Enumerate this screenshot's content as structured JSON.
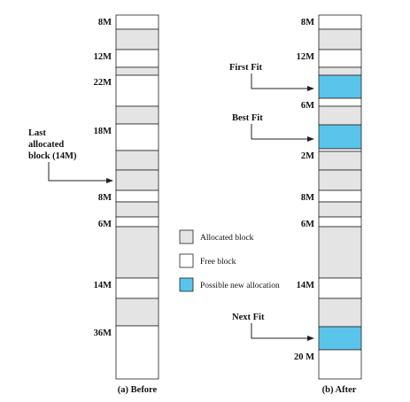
{
  "colors": {
    "allocated": "#e4e4e4",
    "free": "#ffffff",
    "new_allocation": "#5bc4ea",
    "border": "#222222"
  },
  "legend": [
    {
      "kind": "allocated",
      "label": "Allocated block"
    },
    {
      "kind": "free",
      "label": "Free block"
    },
    {
      "kind": "new",
      "label": "Possible new allocation"
    }
  ],
  "before": {
    "caption": "(a) Before",
    "blocks": [
      {
        "kind": "free",
        "label": "8M"
      },
      {
        "kind": "allocated",
        "label": ""
      },
      {
        "kind": "free",
        "label": "12M"
      },
      {
        "kind": "allocated",
        "label": ""
      },
      {
        "kind": "free",
        "label": "22M"
      },
      {
        "kind": "allocated",
        "label": ""
      },
      {
        "kind": "free",
        "label": "18M"
      },
      {
        "kind": "allocated",
        "label": ""
      },
      {
        "kind": "allocated",
        "label": ""
      },
      {
        "kind": "free",
        "label": "8M"
      },
      {
        "kind": "allocated",
        "label": ""
      },
      {
        "kind": "free",
        "label": "6M"
      },
      {
        "kind": "allocated",
        "label": ""
      },
      {
        "kind": "free",
        "label": "14M"
      },
      {
        "kind": "allocated",
        "label": ""
      },
      {
        "kind": "free",
        "label": "36M"
      }
    ],
    "annotation": {
      "lines": [
        "Last",
        "allocated",
        "block (14M)"
      ]
    }
  },
  "after": {
    "caption": "(b) After",
    "blocks": [
      {
        "kind": "free",
        "label": "8M"
      },
      {
        "kind": "allocated",
        "label": ""
      },
      {
        "kind": "free",
        "label": "12M"
      },
      {
        "kind": "allocated",
        "label": ""
      },
      {
        "kind": "new",
        "label": ""
      },
      {
        "kind": "free",
        "label": "6M"
      },
      {
        "kind": "allocated",
        "label": ""
      },
      {
        "kind": "new",
        "label": ""
      },
      {
        "kind": "free",
        "label": "2M"
      },
      {
        "kind": "allocated",
        "label": ""
      },
      {
        "kind": "allocated",
        "label": ""
      },
      {
        "kind": "free",
        "label": "8M"
      },
      {
        "kind": "allocated",
        "label": ""
      },
      {
        "kind": "free",
        "label": "6M"
      },
      {
        "kind": "allocated",
        "label": ""
      },
      {
        "kind": "free",
        "label": "14M"
      },
      {
        "kind": "allocated",
        "label": ""
      },
      {
        "kind": "new",
        "label": ""
      },
      {
        "kind": "free",
        "label": "20 M"
      }
    ],
    "fit_labels": [
      "First Fit",
      "Best Fit",
      "Next Fit"
    ]
  }
}
